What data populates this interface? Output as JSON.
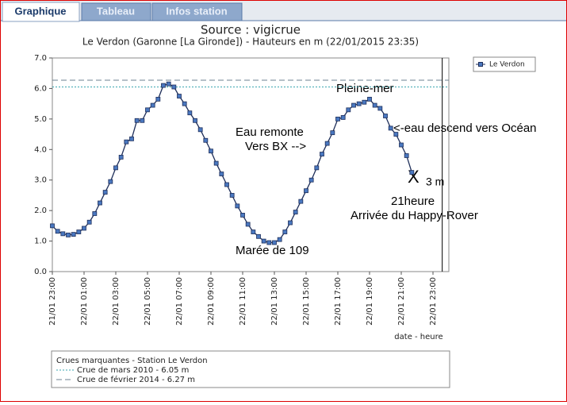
{
  "tabs": [
    "Graphique",
    "Tableau",
    "Infos station"
  ],
  "chart_data": {
    "type": "line",
    "title": "Source : vigicrue",
    "subtitle": "Le Verdon (Garonne [La Gironde]) - Hauteurs en m (22/01/2015 23:35)",
    "x_label": "date - heure",
    "x": [
      "21/01 23:00",
      "21/01 23:20",
      "21/01 23:40",
      "22/01 00:00",
      "22/01 00:20",
      "22/01 00:40",
      "22/01 01:00",
      "22/01 01:20",
      "22/01 01:40",
      "22/01 02:00",
      "22/01 02:20",
      "22/01 02:40",
      "22/01 03:00",
      "22/01 03:20",
      "22/01 03:40",
      "22/01 04:00",
      "22/01 04:20",
      "22/01 04:40",
      "22/01 05:00",
      "22/01 05:20",
      "22/01 05:40",
      "22/01 06:00",
      "22/01 06:20",
      "22/01 06:40",
      "22/01 07:00",
      "22/01 07:20",
      "22/01 07:40",
      "22/01 08:00",
      "22/01 08:20",
      "22/01 08:40",
      "22/01 09:00",
      "22/01 09:20",
      "22/01 09:40",
      "22/01 10:00",
      "22/01 10:20",
      "22/01 10:40",
      "22/01 11:00",
      "22/01 11:20",
      "22/01 11:40",
      "22/01 12:00",
      "22/01 12:20",
      "22/01 12:40",
      "22/01 13:00",
      "22/01 13:20",
      "22/01 13:40",
      "22/01 14:00",
      "22/01 14:20",
      "22/01 14:40",
      "22/01 15:00",
      "22/01 15:20",
      "22/01 15:40",
      "22/01 16:00",
      "22/01 16:20",
      "22/01 16:40",
      "22/01 17:00",
      "22/01 17:20",
      "22/01 17:40",
      "22/01 18:00",
      "22/01 18:20",
      "22/01 18:40",
      "22/01 19:00",
      "22/01 19:20",
      "22/01 19:40",
      "22/01 20:00",
      "22/01 20:20",
      "22/01 20:40",
      "22/01 21:00",
      "22/01 21:20",
      "22/01 21:40"
    ],
    "series": [
      {
        "name": "Le Verdon",
        "color": "#4a78c0",
        "line_color": "#1f2f5a",
        "values": [
          1.5,
          1.32,
          1.24,
          1.2,
          1.22,
          1.3,
          1.42,
          1.62,
          1.9,
          2.25,
          2.6,
          2.95,
          3.4,
          3.75,
          4.25,
          4.35,
          4.95,
          4.95,
          5.3,
          5.45,
          5.65,
          6.1,
          6.15,
          6.05,
          5.75,
          5.5,
          5.2,
          4.95,
          4.65,
          4.3,
          3.95,
          3.55,
          3.2,
          2.85,
          2.5,
          2.15,
          1.85,
          1.55,
          1.3,
          1.15,
          1.0,
          0.95,
          0.95,
          1.05,
          1.3,
          1.6,
          1.95,
          2.3,
          2.65,
          3.0,
          3.4,
          3.85,
          4.2,
          4.55,
          5.0,
          5.05,
          5.3,
          5.45,
          5.5,
          5.55,
          5.65,
          5.45,
          5.35,
          5.1,
          4.7,
          4.5,
          4.15,
          3.8,
          3.25
        ]
      }
    ],
    "xlim": [
      "21/01 23:00",
      "23/01 00:00"
    ],
    "xticks": [
      "21/01 23:00",
      "22/01 01:00",
      "22/01 03:00",
      "22/01 05:00",
      "22/01 07:00",
      "22/01 09:00",
      "22/01 11:00",
      "22/01 13:00",
      "22/01 15:00",
      "22/01 17:00",
      "22/01 19:00",
      "22/01 21:00",
      "22/01 23:00"
    ],
    "ylim": [
      0,
      7
    ],
    "yticks": [
      {
        "value": 0,
        "label": "0.0"
      },
      {
        "value": 1,
        "label": "1.0"
      },
      {
        "value": 2,
        "label": "2.0"
      },
      {
        "value": 3,
        "label": "3.0"
      },
      {
        "value": 4,
        "label": "4.0"
      },
      {
        "value": 5,
        "label": "5.0"
      },
      {
        "value": 6,
        "label": "6.0"
      },
      {
        "value": 7,
        "label": "7.0"
      }
    ],
    "now_x": "22/01 23:35",
    "ref_title": "Crues marquantes - Station Le Verdon",
    "ref_lines": [
      {
        "name": "Crue de mars 2010 - 6.05 m",
        "value": 6.05,
        "color": "#3aa6b0",
        "dash": "2,2"
      },
      {
        "name": "Crue de février 2014 - 6.27 m",
        "value": 6.27,
        "color": "#6c8090",
        "dash": "7,4"
      }
    ],
    "annotations": [
      "Pleine-mer",
      "Eau remonte",
      "Vers BX -->",
      "<-eau descend vers Océan",
      "X",
      "3 m",
      "21heure",
      "Arrivée du Happy-Rover",
      "Marée de 109"
    ]
  }
}
